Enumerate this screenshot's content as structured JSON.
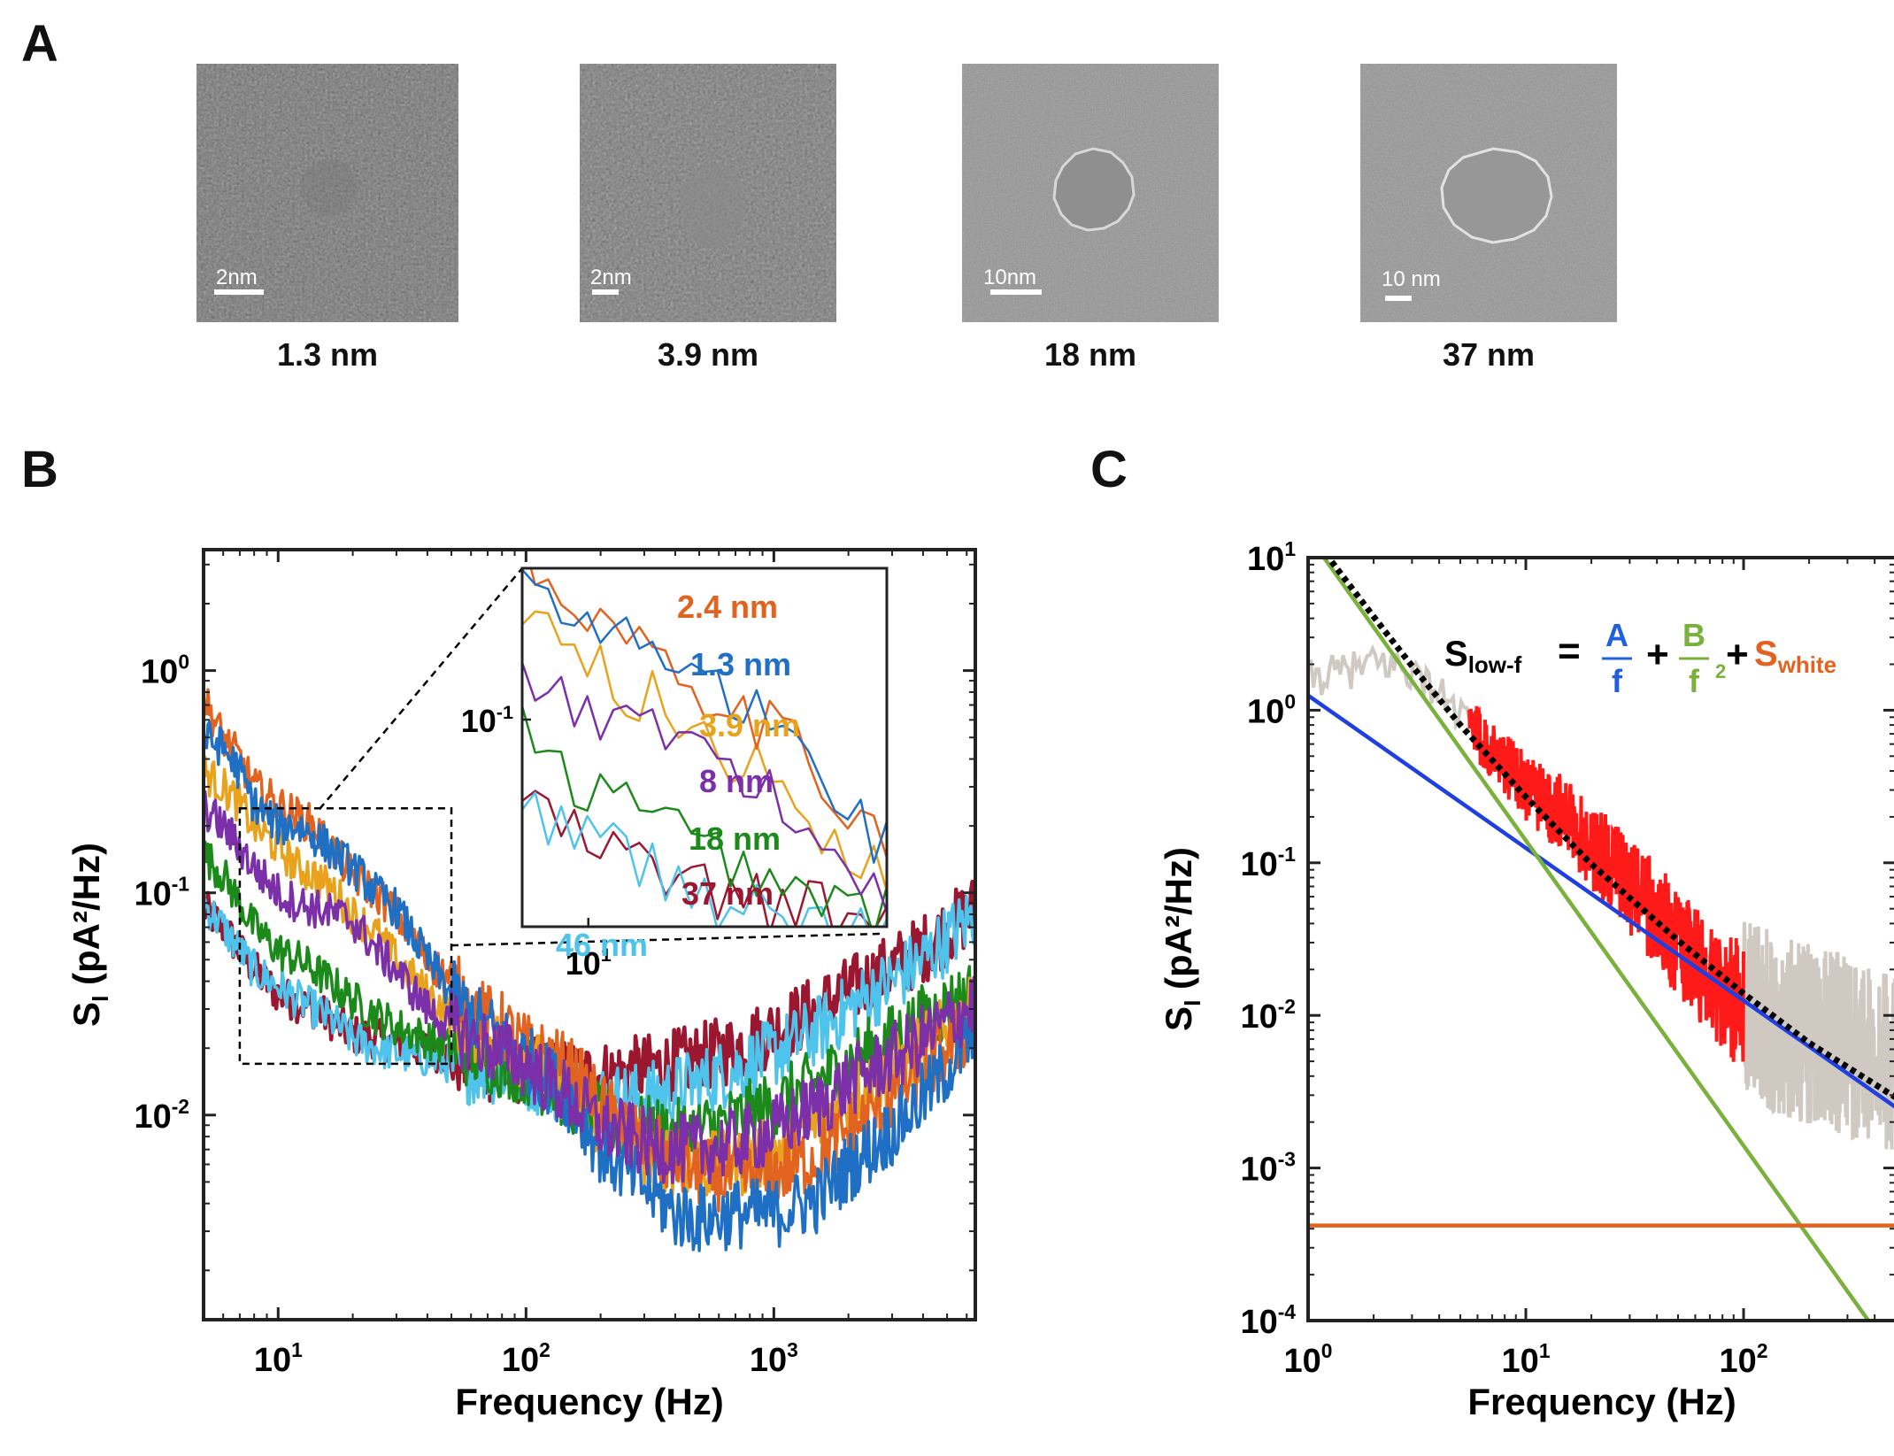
{
  "panels": {
    "a": "A",
    "b": "B",
    "c": "C"
  },
  "tem_images": [
    {
      "scale_label": "2nm",
      "caption": "1.3 nm",
      "pore": "faint"
    },
    {
      "scale_label": "2nm",
      "caption": "3.9 nm",
      "pore": "small"
    },
    {
      "scale_label": "10nm",
      "caption": "18 nm",
      "pore": "ring"
    },
    {
      "scale_label": "10 nm",
      "caption": "37 nm",
      "pore": "ring"
    }
  ],
  "chart_data": [
    {
      "type": "line",
      "panel": "B",
      "xlabel": "Frequency (Hz)",
      "ylabel": "S_I (pA²/Hz)",
      "xscale": "log",
      "yscale": "log",
      "xlim": [
        5,
        6500
      ],
      "ylim": [
        0.0012,
        3.5
      ],
      "xticks": [
        10,
        100,
        1000
      ],
      "yticks": [
        0.01,
        0.1,
        1
      ],
      "series": [
        {
          "name": "2.4 nm",
          "color": "#e2621f",
          "x": [
            5,
            6,
            7,
            8,
            10,
            12,
            14,
            17,
            20,
            25,
            30,
            40,
            50,
            60,
            80,
            100,
            150,
            200,
            300,
            400,
            500,
            700,
            1000,
            1500,
            2000,
            3000,
            4000,
            6500
          ],
          "y": [
            0.75,
            0.5,
            0.4,
            0.3,
            0.25,
            0.22,
            0.2,
            0.15,
            0.12,
            0.1,
            0.08,
            0.05,
            0.04,
            0.03,
            0.025,
            0.02,
            0.016,
            0.011,
            0.0075,
            0.0062,
            0.0055,
            0.0052,
            0.0055,
            0.0065,
            0.0085,
            0.012,
            0.016,
            0.025
          ]
        },
        {
          "name": "1.3 nm",
          "color": "#1f6fc4",
          "x": [
            5,
            6,
            7,
            8,
            10,
            12,
            14,
            17,
            20,
            25,
            30,
            40,
            50,
            60,
            80,
            100,
            150,
            200,
            300,
            400,
            500,
            700,
            1000,
            1500,
            2000,
            3000,
            4000,
            6500
          ],
          "y": [
            0.5,
            0.45,
            0.35,
            0.25,
            0.2,
            0.2,
            0.18,
            0.15,
            0.13,
            0.1,
            0.085,
            0.05,
            0.035,
            0.028,
            0.022,
            0.018,
            0.012,
            0.007,
            0.0048,
            0.0036,
            0.0034,
            0.0036,
            0.0036,
            0.0042,
            0.0058,
            0.0085,
            0.012,
            0.023
          ]
        },
        {
          "name": "3.9 nm",
          "color": "#e8a21c",
          "x": [
            5,
            6,
            7,
            8,
            10,
            12,
            14,
            17,
            20,
            25,
            30,
            40,
            50,
            60,
            80,
            100,
            150,
            200,
            300,
            400,
            500,
            700,
            1000,
            1500,
            2000,
            3000,
            4000,
            6500
          ],
          "y": [
            0.35,
            0.3,
            0.25,
            0.2,
            0.16,
            0.13,
            0.12,
            0.1,
            0.08,
            0.065,
            0.05,
            0.035,
            0.028,
            0.025,
            0.02,
            0.018,
            0.013,
            0.009,
            0.007,
            0.0062,
            0.0058,
            0.006,
            0.0068,
            0.009,
            0.012,
            0.016,
            0.02,
            0.03
          ]
        },
        {
          "name": "8 nm",
          "color": "#7b2fa8",
          "x": [
            5,
            6,
            7,
            8,
            10,
            12,
            14,
            17,
            20,
            25,
            30,
            40,
            50,
            60,
            80,
            100,
            150,
            200,
            300,
            400,
            500,
            700,
            1000,
            1500,
            2000,
            3000,
            4000,
            6500
          ],
          "y": [
            0.24,
            0.2,
            0.16,
            0.13,
            0.1,
            0.09,
            0.085,
            0.08,
            0.075,
            0.055,
            0.045,
            0.03,
            0.025,
            0.022,
            0.019,
            0.017,
            0.012,
            0.009,
            0.0075,
            0.007,
            0.007,
            0.0075,
            0.0085,
            0.011,
            0.014,
            0.018,
            0.022,
            0.032
          ]
        },
        {
          "name": "18 nm",
          "color": "#1b8a1b",
          "x": [
            5,
            6,
            7,
            8,
            10,
            12,
            14,
            17,
            20,
            25,
            30,
            40,
            50,
            60,
            80,
            100,
            150,
            200,
            300,
            400,
            500,
            700,
            1000,
            1500,
            2000,
            3000,
            4000,
            6500
          ],
          "y": [
            0.15,
            0.12,
            0.09,
            0.07,
            0.055,
            0.05,
            0.045,
            0.038,
            0.033,
            0.028,
            0.025,
            0.022,
            0.02,
            0.019,
            0.017,
            0.016,
            0.012,
            0.0095,
            0.0085,
            0.0082,
            0.0085,
            0.0095,
            0.011,
            0.014,
            0.017,
            0.022,
            0.027,
            0.036
          ]
        },
        {
          "name": "37 nm",
          "color": "#9b1730",
          "x": [
            5,
            6,
            7,
            8,
            10,
            12,
            14,
            17,
            20,
            25,
            30,
            40,
            50,
            60,
            80,
            100,
            150,
            200,
            300,
            400,
            500,
            700,
            1000,
            1500,
            2000,
            3000,
            4000,
            6500
          ],
          "y": [
            0.085,
            0.07,
            0.055,
            0.045,
            0.035,
            0.032,
            0.03,
            0.026,
            0.023,
            0.022,
            0.021,
            0.02,
            0.018,
            0.017,
            0.016,
            0.016,
            0.015,
            0.015,
            0.016,
            0.017,
            0.018,
            0.02,
            0.024,
            0.03,
            0.036,
            0.046,
            0.056,
            0.085
          ]
        },
        {
          "name": "46 nm",
          "color": "#4ec3ec",
          "x": [
            5,
            6,
            7,
            8,
            10,
            12,
            14,
            17,
            20,
            25,
            30,
            40,
            50,
            60,
            80,
            100,
            150,
            200,
            300,
            400,
            500,
            700,
            1000,
            1500,
            2000,
            3000,
            4000,
            6500
          ],
          "y": [
            0.09,
            0.07,
            0.055,
            0.045,
            0.038,
            0.033,
            0.03,
            0.026,
            0.022,
            0.02,
            0.019,
            0.018,
            0.017,
            0.016,
            0.016,
            0.015,
            0.013,
            0.012,
            0.012,
            0.013,
            0.014,
            0.016,
            0.019,
            0.024,
            0.03,
            0.04,
            0.05,
            0.08
          ]
        }
      ],
      "inset": {
        "xlim": [
          7,
          50
        ],
        "ylim": [
          0.018,
          0.35
        ],
        "xticks": [
          10
        ],
        "yticks": [
          0.1
        ],
        "labels": [
          "2.4 nm",
          "1.3 nm",
          "3.9 nm",
          "8 nm",
          "18 nm",
          "37 nm",
          "46 nm"
        ]
      },
      "zoom_box": {
        "xlim": [
          7,
          50
        ],
        "ylim": [
          0.017,
          0.24
        ]
      }
    },
    {
      "type": "line",
      "panel": "C",
      "xlabel": "Frequency (Hz)",
      "ylabel": "S_I (pA²/Hz)",
      "xscale": "log",
      "yscale": "log",
      "xlim": [
        1,
        500
      ],
      "ylim": [
        0.0001,
        10
      ],
      "xticks": [
        1,
        10,
        100
      ],
      "yticks": [
        0.0001,
        0.001,
        0.01,
        0.1,
        1,
        10
      ],
      "series": [
        {
          "name": "data (fit range)",
          "color": "#ff1a1a",
          "x": [
            5,
            6,
            7,
            8,
            10,
            12,
            15,
            20,
            25,
            30,
            40,
            50,
            60,
            70,
            80,
            100
          ],
          "y": [
            0.9,
            0.7,
            0.55,
            0.45,
            0.32,
            0.26,
            0.2,
            0.13,
            0.095,
            0.07,
            0.045,
            0.03,
            0.022,
            0.018,
            0.015,
            0.011
          ]
        },
        {
          "name": "data (outside range)",
          "color": "#cfc9c1",
          "x": [
            1,
            1.5,
            2,
            2.5,
            3,
            3.5,
            4,
            4.5,
            5,
            100,
            130,
            160,
            200,
            250,
            300,
            350,
            400,
            450,
            500
          ],
          "y": [
            1.6,
            1.8,
            2.0,
            2.0,
            1.8,
            1.5,
            1.3,
            1.1,
            0.9,
            0.011,
            0.0095,
            0.0085,
            0.0075,
            0.0068,
            0.0062,
            0.0058,
            0.0055,
            0.0052,
            0.005
          ]
        },
        {
          "name": "A/f",
          "color": "#1f3fe0",
          "x": [
            1,
            500
          ],
          "y": [
            1.25,
            0.0025
          ]
        },
        {
          "name": "B/f²",
          "color": "#7ab03c",
          "x": [
            1,
            500
          ],
          "y": [
            14,
            5.6e-05
          ]
        },
        {
          "name": "S_white",
          "color": "#e2621f",
          "x": [
            1,
            500
          ],
          "y": [
            0.00042,
            0.00042
          ]
        },
        {
          "name": "total fit",
          "color": "#000000",
          "dashed": true,
          "x": [
            1,
            2,
            3,
            5,
            10,
            20,
            50,
            100,
            200,
            500
          ],
          "y": [
            15,
            4.1,
            1.95,
            0.8,
            0.27,
            0.098,
            0.031,
            0.0139,
            0.0066,
            0.0029
          ]
        }
      ],
      "equation": {
        "lhs": "S",
        "lhs_sub": "low-f",
        "eq": "=",
        "a_num": "A",
        "a_den": "f",
        "plus": "+",
        "b_num": "B",
        "b_den": "f",
        "b_exp": "2",
        "white": "S",
        "white_sub": "white",
        "colors": {
          "a": "#1f5fe0",
          "b": "#7ab03c",
          "white": "#e2621f"
        }
      }
    }
  ]
}
